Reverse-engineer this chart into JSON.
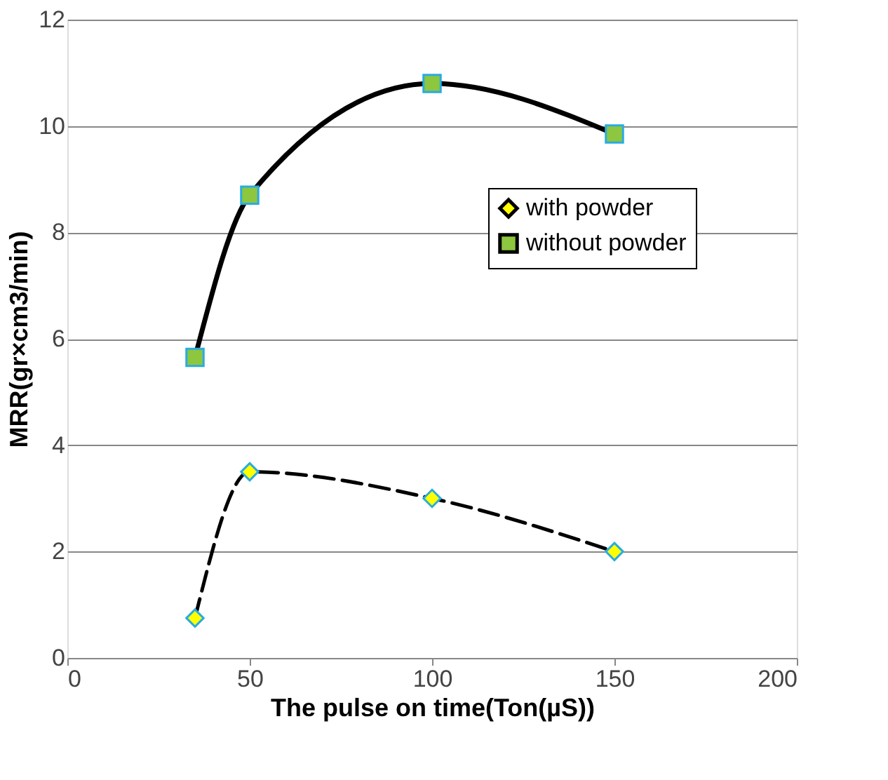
{
  "chart_data": {
    "type": "line",
    "xlabel": "The pulse on time(Ton(µS))",
    "ylabel": "MRR(gr×cm3/min)",
    "xlim": [
      0,
      200
    ],
    "xticks": [
      0,
      50,
      100,
      150,
      200
    ],
    "ylim": [
      0,
      12
    ],
    "yticks": [
      0,
      2,
      4,
      6,
      8,
      10,
      12
    ],
    "grid": "y",
    "legend": "right",
    "series": [
      {
        "name": "with powder",
        "color": "#000000",
        "line_style": "dashed",
        "marker": "diamond",
        "x": [
          35,
          50,
          100,
          150
        ],
        "values": [
          0.75,
          3.5,
          3.0,
          2.0
        ]
      },
      {
        "name": "without powder",
        "color": "#000000",
        "line_style": "solid",
        "marker": "square",
        "x": [
          35,
          50,
          100,
          150
        ],
        "values": [
          5.65,
          8.7,
          10.8,
          9.85
        ]
      }
    ]
  }
}
